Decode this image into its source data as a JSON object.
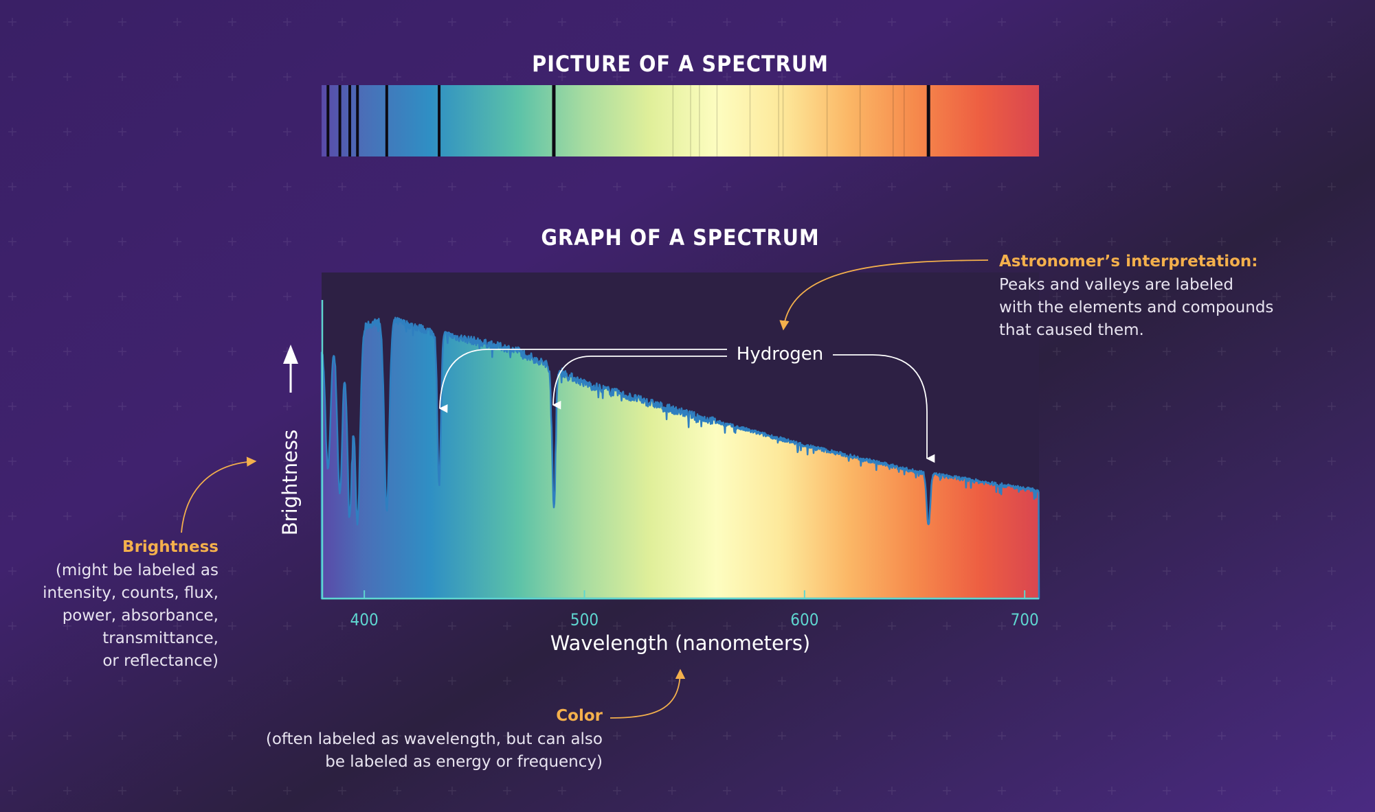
{
  "titles": {
    "picture": "PICTURE OF A SPECTRUM",
    "graph": "GRAPH OF A SPECTRUM"
  },
  "colors": {
    "background": "#3d2270",
    "plot_background": "#2d2044",
    "accent": "#f4b04c",
    "axis": "#5fd6d0",
    "curve_stroke": "#2f7fc0"
  },
  "annotations": {
    "hydrogen": "Hydrogen",
    "astronomer_title": "Astronomer’s interpretation:",
    "astronomer_lines": [
      "Peaks and valleys are labeled",
      "with the elements and compounds",
      "that caused them."
    ],
    "brightness_title": "Brightness",
    "brightness_lines": [
      "(might be labeled as",
      "intensity, counts, flux,",
      "power, absorbance,",
      "transmittance,",
      "or reflectance)"
    ],
    "color_title": "Color",
    "color_lines": [
      "(often labeled as wavelength, but can also",
      "be labeled as energy or frequency)"
    ]
  },
  "chart_data": {
    "type": "area",
    "xlabel": "Wavelength (nanometers)",
    "ylabel": "Brightness",
    "xlim": [
      380.6,
      706.5
    ],
    "ylim": [
      0,
      1
    ],
    "x_ticks": [
      400,
      500,
      600,
      700
    ],
    "x_tick_labels": [
      "400",
      "500",
      "600",
      "700"
    ],
    "grid": false,
    "continuum": [
      [
        380,
        0.78
      ],
      [
        410,
        0.86
      ],
      [
        430,
        0.82
      ],
      [
        470,
        0.76
      ],
      [
        500,
        0.66
      ],
      [
        550,
        0.56
      ],
      [
        600,
        0.47
      ],
      [
        650,
        0.39
      ],
      [
        706.5,
        0.33
      ]
    ],
    "absorption_lines": [
      {
        "wavelength": 383.5,
        "depth": 0.5
      },
      {
        "wavelength": 388.9,
        "depth": 0.6
      },
      {
        "wavelength": 393.4,
        "depth": 0.68
      },
      {
        "wavelength": 396.9,
        "depth": 0.72
      },
      {
        "wavelength": 410.2,
        "depth": 0.68
      },
      {
        "wavelength": 434.0,
        "depth": 0.57,
        "label": "Hydrogen"
      },
      {
        "wavelength": 486.1,
        "depth": 0.6,
        "label": "Hydrogen"
      },
      {
        "wavelength": 656.3,
        "depth": 0.42,
        "label": "Hydrogen"
      }
    ],
    "color_stops": [
      [
        380,
        "#5a4aa8"
      ],
      [
        400,
        "#4a6fb8"
      ],
      [
        430,
        "#2f8fc4"
      ],
      [
        470,
        "#5cc2a8"
      ],
      [
        500,
        "#a8dca0"
      ],
      [
        530,
        "#e0ef9a"
      ],
      [
        560,
        "#fdfdc0"
      ],
      [
        590,
        "#fde89a"
      ],
      [
        620,
        "#fbb766"
      ],
      [
        650,
        "#f68a4c"
      ],
      [
        680,
        "#ed5e42"
      ],
      [
        706.5,
        "#d94650"
      ]
    ]
  }
}
